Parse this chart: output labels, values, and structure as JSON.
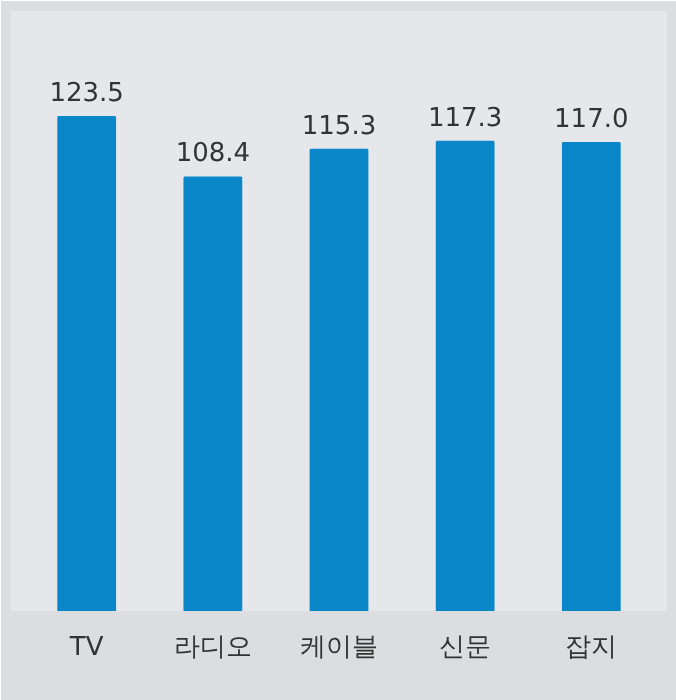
{
  "chart_data": {
    "type": "bar",
    "categories": [
      "TV",
      "라디오",
      "케이블",
      "신문",
      "잡지"
    ],
    "values": [
      123.5,
      108.4,
      115.3,
      117.3,
      117.0
    ],
    "value_labels": [
      "123.5",
      "108.4",
      "115.3",
      "117.3",
      "117.0"
    ],
    "color": "#0a87c9",
    "ylim": [
      0,
      150
    ]
  }
}
